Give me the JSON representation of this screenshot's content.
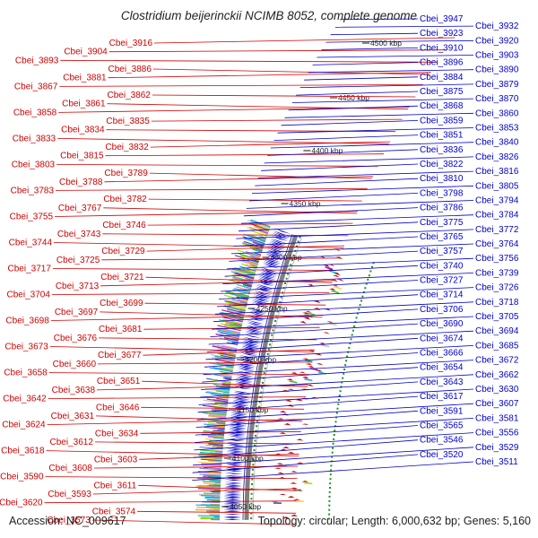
{
  "title": "Clostridium beijerinckii NCIMB 8052, complete genome",
  "footer": {
    "accession": "Accession: NC_009617",
    "stats": "Topology: circular; Length: 6,000,632 bp; Genes: 5,160"
  },
  "scale_labels": [
    "4500 kbp",
    "4450 kbp",
    "4400 kbp",
    "4350 kbp",
    "4300 kbp",
    "4250 kbp",
    "4200 kbp",
    "4150 kbp",
    "4100 kbp",
    "4050 kbp"
  ],
  "left_labels": [
    "Cbei_3916",
    "Cbei_3904",
    "Cbei_3893",
    "Cbei_3886",
    "Cbei_3881",
    "Cbei_3867",
    "Cbei_3862",
    "Cbei_3861",
    "Cbei_3858",
    "Cbei_3835",
    "Cbei_3834",
    "Cbei_3833",
    "Cbei_3832",
    "Cbei_3815",
    "Cbei_3803",
    "Cbei_3789",
    "Cbei_3788",
    "Cbei_3783",
    "Cbei_3782",
    "Cbei_3767",
    "Cbei_3755",
    "Cbei_3746",
    "Cbei_3743",
    "Cbei_3744",
    "Cbei_3729",
    "Cbei_3725",
    "Cbei_3717",
    "Cbei_3721",
    "Cbei_3713",
    "Cbei_3704",
    "Cbei_3699",
    "Cbei_3697",
    "Cbei_3698",
    "Cbei_3681",
    "Cbei_3676",
    "Cbei_3673",
    "Cbei_3677",
    "Cbei_3660",
    "Cbei_3658",
    "Cbei_3651",
    "Cbei_3638",
    "Cbei_3642",
    "Cbei_3646",
    "Cbei_3631",
    "Cbei_3624",
    "Cbei_3634",
    "Cbei_3612",
    "Cbei_3618",
    "Cbei_3603",
    "Cbei_3608",
    "Cbei_3590",
    "Cbei_3611",
    "Cbei_3593",
    "Cbei_3620",
    "Cbei_3574",
    "Cbei_3573"
  ],
  "right_labels": [
    "Cbei_3947",
    "Cbei_3932",
    "Cbei_3923",
    "Cbei_3920",
    "Cbei_3910",
    "Cbei_3903",
    "Cbei_3896",
    "Cbei_3890",
    "Cbei_3884",
    "Cbei_3879",
    "Cbei_3875",
    "Cbei_3870",
    "Cbei_3868",
    "Cbei_3860",
    "Cbei_3859",
    "Cbei_3853",
    "Cbei_3851",
    "Cbei_3840",
    "Cbei_3836",
    "Cbei_3826",
    "Cbei_3822",
    "Cbei_3816",
    "Cbei_3810",
    "Cbei_3805",
    "Cbei_3798",
    "Cbei_3794",
    "Cbei_3786",
    "Cbei_3784",
    "Cbei_3775",
    "Cbei_3772",
    "Cbei_3765",
    "Cbei_3764",
    "Cbei_3757",
    "Cbei_3756",
    "Cbei_3740",
    "Cbei_3739",
    "Cbei_3727",
    "Cbei_3726",
    "Cbei_3714",
    "Cbei_3718",
    "Cbei_3706",
    "Cbei_3705",
    "Cbei_3690",
    "Cbei_3694",
    "Cbei_3674",
    "Cbei_3685",
    "Cbei_3666",
    "Cbei_3672",
    "Cbei_3654",
    "Cbei_3662",
    "Cbei_3643",
    "Cbei_3630",
    "Cbei_3617",
    "Cbei_3607",
    "Cbei_3591",
    "Cbei_3581",
    "Cbei_3565",
    "Cbei_3556",
    "Cbei_3546",
    "Cbei_3529",
    "Cbei_3520",
    "Cbei_3511"
  ],
  "colors": {
    "reverse_strand": "#d00000",
    "forward_strand": "#0000c8",
    "backbone": "#808080",
    "gc_dots": "#2a8a2a"
  }
}
